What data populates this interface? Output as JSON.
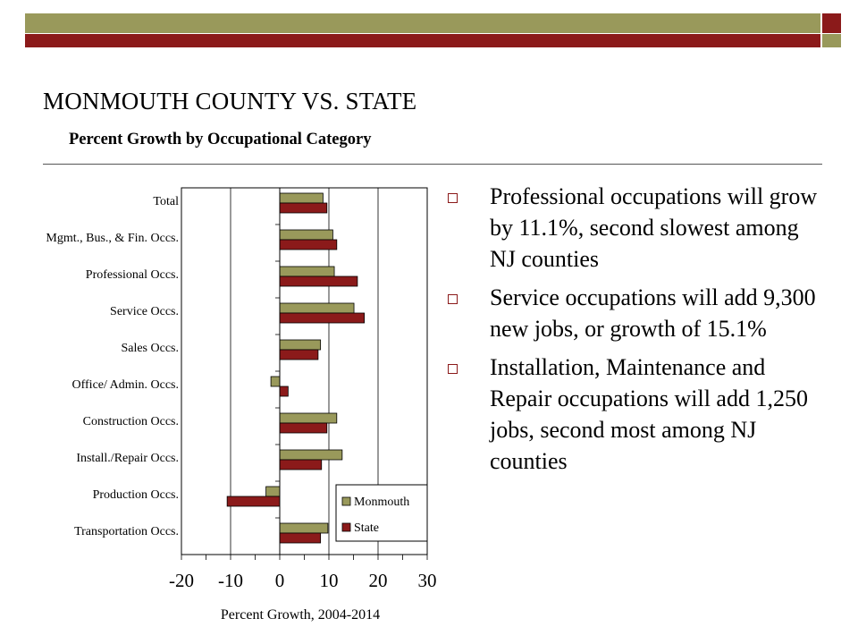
{
  "slide": {
    "title": "MONMOUTH COUNTY VS. STATE",
    "subtitle": "Percent Growth by Occupational Category",
    "accent_olive": "#99995b",
    "accent_maroon": "#8b1a1a"
  },
  "bullets": [
    "Professional occupations will grow by 11.1%, second slowest among NJ counties",
    "Service occupations will add 9,300 new jobs, or growth of 15.1%",
    "Installation, Maintenance and Repair occupations will add 1,250 jobs, second most among NJ counties"
  ],
  "chart_data": {
    "type": "bar",
    "orientation": "horizontal",
    "categories": [
      "Total",
      "Mgmt., Bus., & Fin. Occs.",
      "Professional Occs.",
      "Service Occs.",
      "Sales Occs.",
      "Office/ Admin. Occs.",
      "Construction Occs.",
      "Install./Repair Occs.",
      "Production Occs.",
      "Transportation Occs."
    ],
    "series": [
      {
        "name": "Monmouth",
        "color": "#99995b",
        "values": [
          8.8,
          10.8,
          11.1,
          15.1,
          8.3,
          -1.8,
          11.6,
          12.7,
          -2.8,
          9.8
        ]
      },
      {
        "name": "State",
        "color": "#8b1a1a",
        "values": [
          9.6,
          11.6,
          15.8,
          17.2,
          7.8,
          1.7,
          9.6,
          8.5,
          -10.7,
          8.3
        ]
      }
    ],
    "xlabel": "Percent Growth, 2004-2014",
    "ylabel": "",
    "xlim": [
      -20,
      30
    ],
    "xticks": [
      -20,
      -10,
      0,
      10,
      20,
      30
    ],
    "grid": "vertical-major",
    "legend": "bottom-right"
  }
}
